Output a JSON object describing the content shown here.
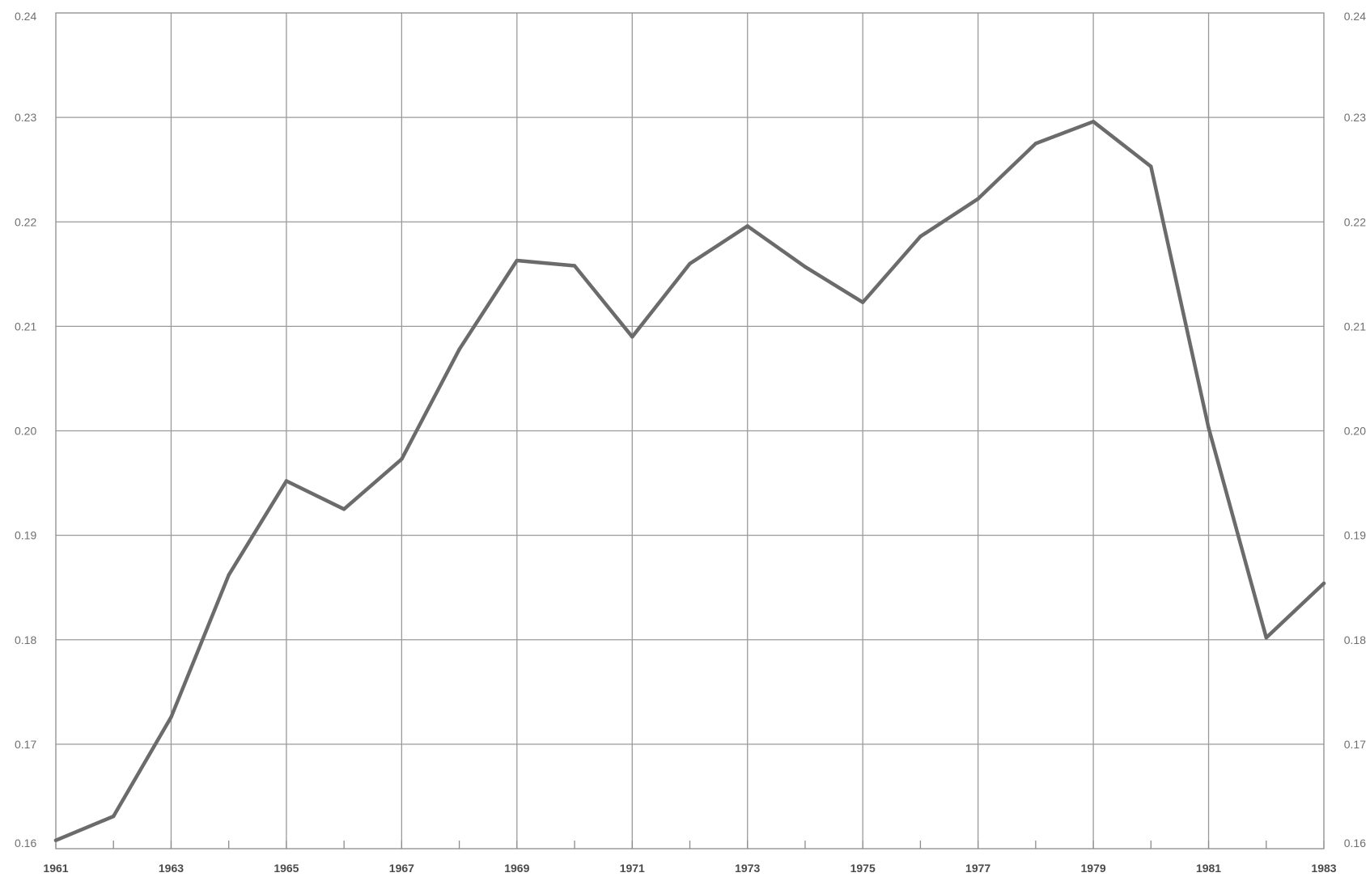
{
  "chart_data": {
    "type": "line",
    "title": "",
    "xlabel": "",
    "ylabel": "",
    "grid": true,
    "xlim": [
      1961,
      1983
    ],
    "ylim": [
      0.16,
      0.24
    ],
    "x_ticks": [
      1961,
      1962,
      1963,
      1964,
      1965,
      1966,
      1967,
      1968,
      1969,
      1970,
      1971,
      1972,
      1973,
      1974,
      1975,
      1976,
      1977,
      1978,
      1979,
      1980,
      1981,
      1982,
      1983
    ],
    "x_tick_labels": [
      "1961",
      "1963",
      "1965",
      "1967",
      "1969",
      "1971",
      "1973",
      "1975",
      "1977",
      "1979",
      "1981",
      "1983"
    ],
    "y_ticks": [
      0.16,
      0.17,
      0.18,
      0.19,
      0.2,
      0.21,
      0.22,
      0.23,
      0.24
    ],
    "y_tick_labels_left": [
      "0.16",
      "0.17",
      "0.18",
      "0.19",
      "0.20",
      "0.21",
      "0.22",
      "0.23",
      "0.24"
    ],
    "y_tick_labels_right": [
      "0.16",
      "0.17",
      "0.18",
      "0.19",
      "0.20",
      "0.21",
      "0.22",
      "0.23",
      "0.24"
    ],
    "series": [
      {
        "color": "#6b6b6b",
        "x": [
          1961,
          1962,
          1963,
          1964,
          1965,
          1966,
          1967,
          1968,
          1969,
          1970,
          1971,
          1972,
          1973,
          1974,
          1975,
          1976,
          1977,
          1978,
          1979,
          1980,
          1981,
          1982,
          1983
        ],
        "values": [
          0.1608,
          0.1631,
          0.1726,
          0.1862,
          0.1952,
          0.1925,
          0.1973,
          0.2078,
          0.2163,
          0.2158,
          0.209,
          0.216,
          0.2196,
          0.2157,
          0.2123,
          0.2186,
          0.2222,
          0.2275,
          0.2296,
          0.2253,
          0.2003,
          0.1802,
          0.1854
        ]
      }
    ]
  }
}
